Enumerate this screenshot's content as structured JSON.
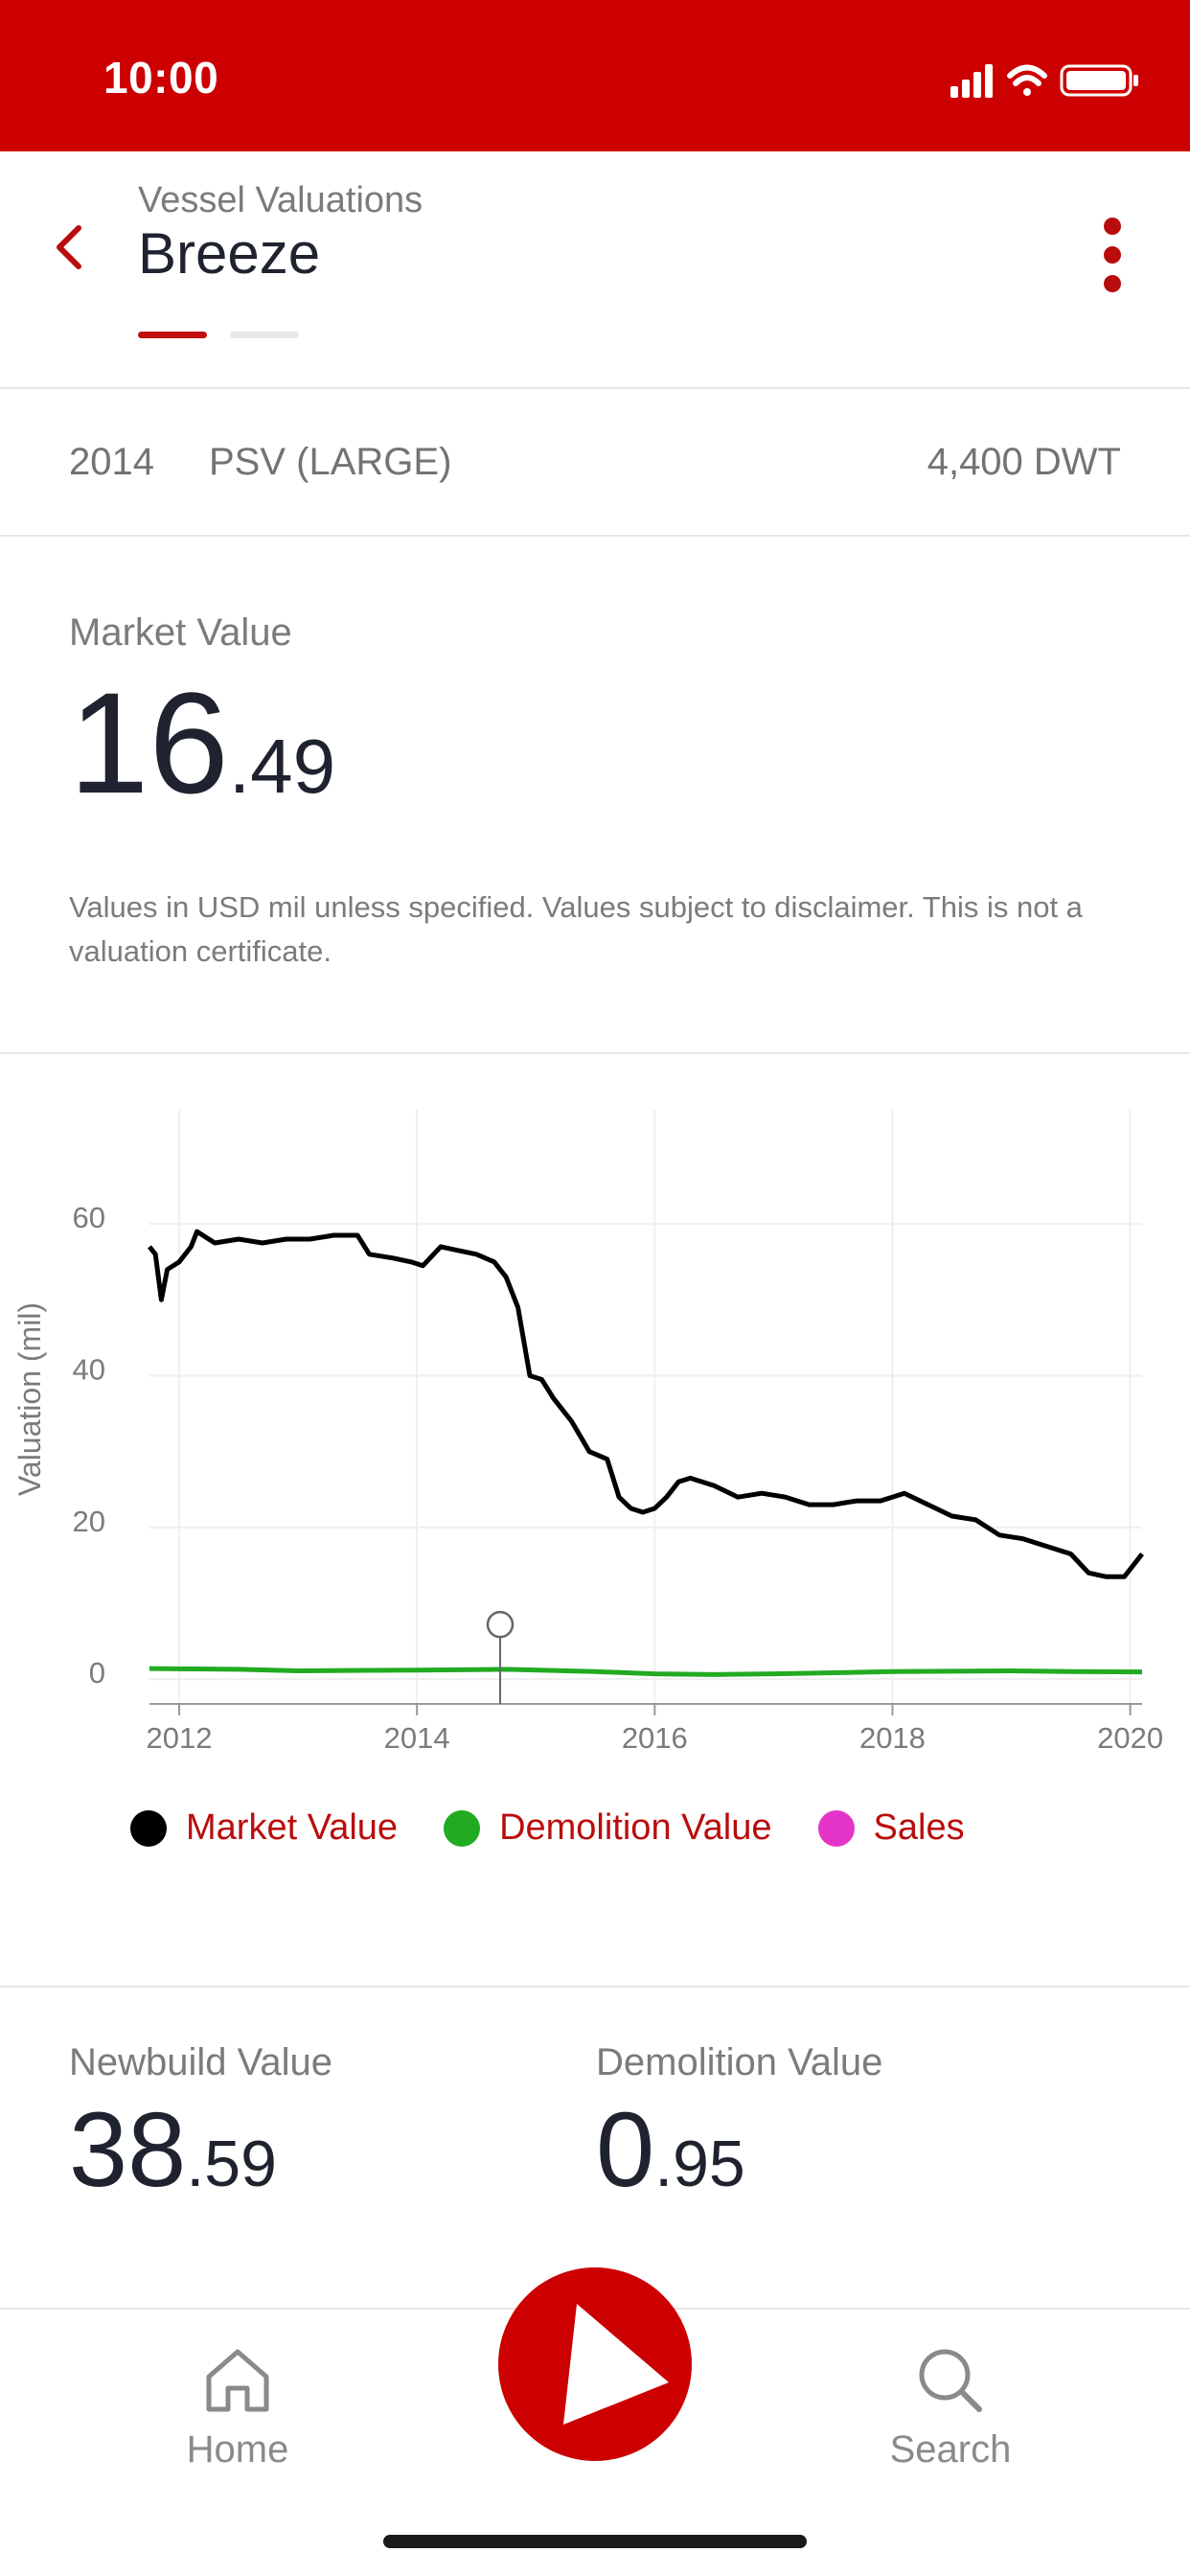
{
  "status": {
    "time": "10:00"
  },
  "header": {
    "subtitle": "Vessel Valuations",
    "title": "Breeze"
  },
  "vessel": {
    "year": "2014",
    "type": "PSV (LARGE)",
    "dwt": "4,400 DWT"
  },
  "market_value": {
    "label": "Market Value",
    "int": "16",
    "dec": ".49",
    "disclaimer": "Values in USD mil unless specified. Values subject to disclaimer. This is not a valuation certificate."
  },
  "chart": {
    "ylabel": "Valuation (mil)",
    "yticks": [
      "60",
      "40",
      "20",
      "0"
    ],
    "xticks": [
      "2012",
      "2014",
      "2016",
      "2018",
      "2020"
    ]
  },
  "legend": [
    {
      "label": "Market Value",
      "color": "#000000"
    },
    {
      "label": "Demolition Value",
      "color": "#22aa22"
    },
    {
      "label": "Sales",
      "color": "#e535c8"
    }
  ],
  "newbuild": {
    "label": "Newbuild Value",
    "int": "38",
    "dec": ".59"
  },
  "demolition": {
    "label": "Demolition Value",
    "int": "0",
    "dec": ".95"
  },
  "tabs": {
    "home": "Home",
    "search": "Search"
  },
  "chart_data": {
    "type": "line",
    "ylabel": "Valuation (mil)",
    "ylim": [
      -2,
      70
    ],
    "xlim": [
      2011.75,
      2020.1
    ],
    "grid": true,
    "legend_position": "bottom",
    "series": [
      {
        "name": "Market Value",
        "color": "#000000",
        "x": [
          2011.75,
          2011.8,
          2011.85,
          2011.9,
          2012.0,
          2012.1,
          2012.15,
          2012.3,
          2012.5,
          2012.7,
          2012.9,
          2013.1,
          2013.3,
          2013.5,
          2013.6,
          2013.8,
          2013.95,
          2014.05,
          2014.2,
          2014.35,
          2014.5,
          2014.65,
          2014.75,
          2014.85,
          2014.95,
          2015.05,
          2015.15,
          2015.3,
          2015.45,
          2015.6,
          2015.7,
          2015.8,
          2015.9,
          2016.0,
          2016.1,
          2016.2,
          2016.3,
          2016.5,
          2016.7,
          2016.9,
          2017.1,
          2017.3,
          2017.5,
          2017.7,
          2017.9,
          2018.1,
          2018.3,
          2018.5,
          2018.7,
          2018.9,
          2019.1,
          2019.3,
          2019.5,
          2019.65,
          2019.8,
          2019.95,
          2020.05,
          2020.1
        ],
        "y": [
          57,
          56,
          50,
          54,
          55,
          57,
          59,
          57.5,
          58,
          57.5,
          58,
          58,
          58.5,
          58.5,
          56,
          55.5,
          55,
          54.5,
          57,
          56.5,
          56,
          55,
          53,
          49,
          40,
          39.5,
          37,
          34,
          30,
          29,
          24,
          22.5,
          22,
          22.5,
          24,
          26,
          26.5,
          25.5,
          24,
          24.5,
          24,
          23,
          23,
          23.5,
          23.5,
          24.5,
          23,
          21.5,
          21,
          19,
          18.5,
          17.5,
          16.5,
          14,
          13.5,
          13.5,
          15.5,
          16.5
        ]
      },
      {
        "name": "Demolition Value",
        "color": "#22aa22",
        "x": [
          2011.75,
          2012.5,
          2013.0,
          2014.0,
          2014.75,
          2015.5,
          2016.0,
          2016.5,
          2017.0,
          2018.0,
          2019.0,
          2019.5,
          2020.1
        ],
        "y": [
          1.4,
          1.3,
          1.1,
          1.2,
          1.3,
          1.0,
          0.7,
          0.6,
          0.7,
          1.0,
          1.1,
          1.0,
          0.95
        ]
      },
      {
        "name": "Sales",
        "color": "#e535c8",
        "x": [
          2014.7
        ],
        "y": [
          7.2
        ]
      }
    ]
  }
}
